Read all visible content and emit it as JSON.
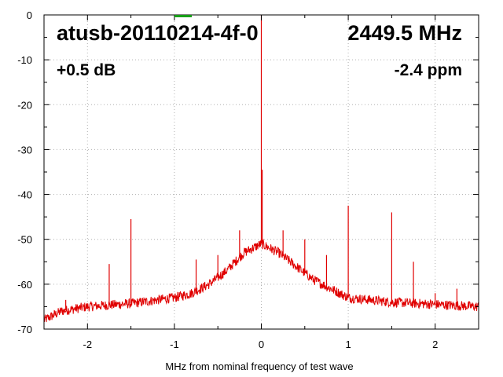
{
  "chart_data": {
    "type": "line",
    "xlabel": "MHz from nominal frequency of test wave",
    "ylabel": "",
    "xlim": [
      -2.5,
      2.5
    ],
    "ylim": [
      -70,
      0
    ],
    "x_ticks": [
      -2,
      -1,
      0,
      1,
      2
    ],
    "y_ticks": [
      0,
      -10,
      -20,
      -30,
      -40,
      -50,
      -60,
      -70
    ],
    "grid": true,
    "series_color": "#e00000",
    "marker_color": "#18a018",
    "annotations": {
      "device": "atusb-20110214-4f-0",
      "frequency": "2449.5 MHz",
      "power": "+0.5 dB",
      "offset": "-2.4 ppm"
    },
    "baseline": [
      [
        -2.5,
        -68
      ],
      [
        -2.3,
        -66
      ],
      [
        -2.0,
        -65
      ],
      [
        -1.5,
        -64.3
      ],
      [
        -1.0,
        -63
      ],
      [
        -0.8,
        -62
      ],
      [
        -0.6,
        -60
      ],
      [
        -0.4,
        -57
      ],
      [
        -0.2,
        -53
      ],
      [
        0.0,
        -51
      ],
      [
        0.2,
        -53
      ],
      [
        0.4,
        -56
      ],
      [
        0.6,
        -59
      ],
      [
        0.8,
        -61
      ],
      [
        1.0,
        -63
      ],
      [
        1.5,
        -64
      ],
      [
        2.0,
        -64.5
      ],
      [
        2.5,
        -65
      ]
    ],
    "spikes": [
      {
        "x": -2.25,
        "y": -63.5
      },
      {
        "x": -1.75,
        "y": -55.5
      },
      {
        "x": -1.5,
        "y": -45.5
      },
      {
        "x": -0.75,
        "y": -54.5
      },
      {
        "x": -0.5,
        "y": -53.5
      },
      {
        "x": -0.25,
        "y": -48
      },
      {
        "x": 0.0,
        "y": 0
      },
      {
        "x": 0.01,
        "y": -34.5
      },
      {
        "x": 0.25,
        "y": -48
      },
      {
        "x": 0.5,
        "y": -50
      },
      {
        "x": 0.75,
        "y": -53.5
      },
      {
        "x": 1.0,
        "y": -42.5
      },
      {
        "x": 1.5,
        "y": -44
      },
      {
        "x": 1.75,
        "y": -55
      },
      {
        "x": 2.0,
        "y": -62
      },
      {
        "x": 2.25,
        "y": -61
      }
    ]
  }
}
